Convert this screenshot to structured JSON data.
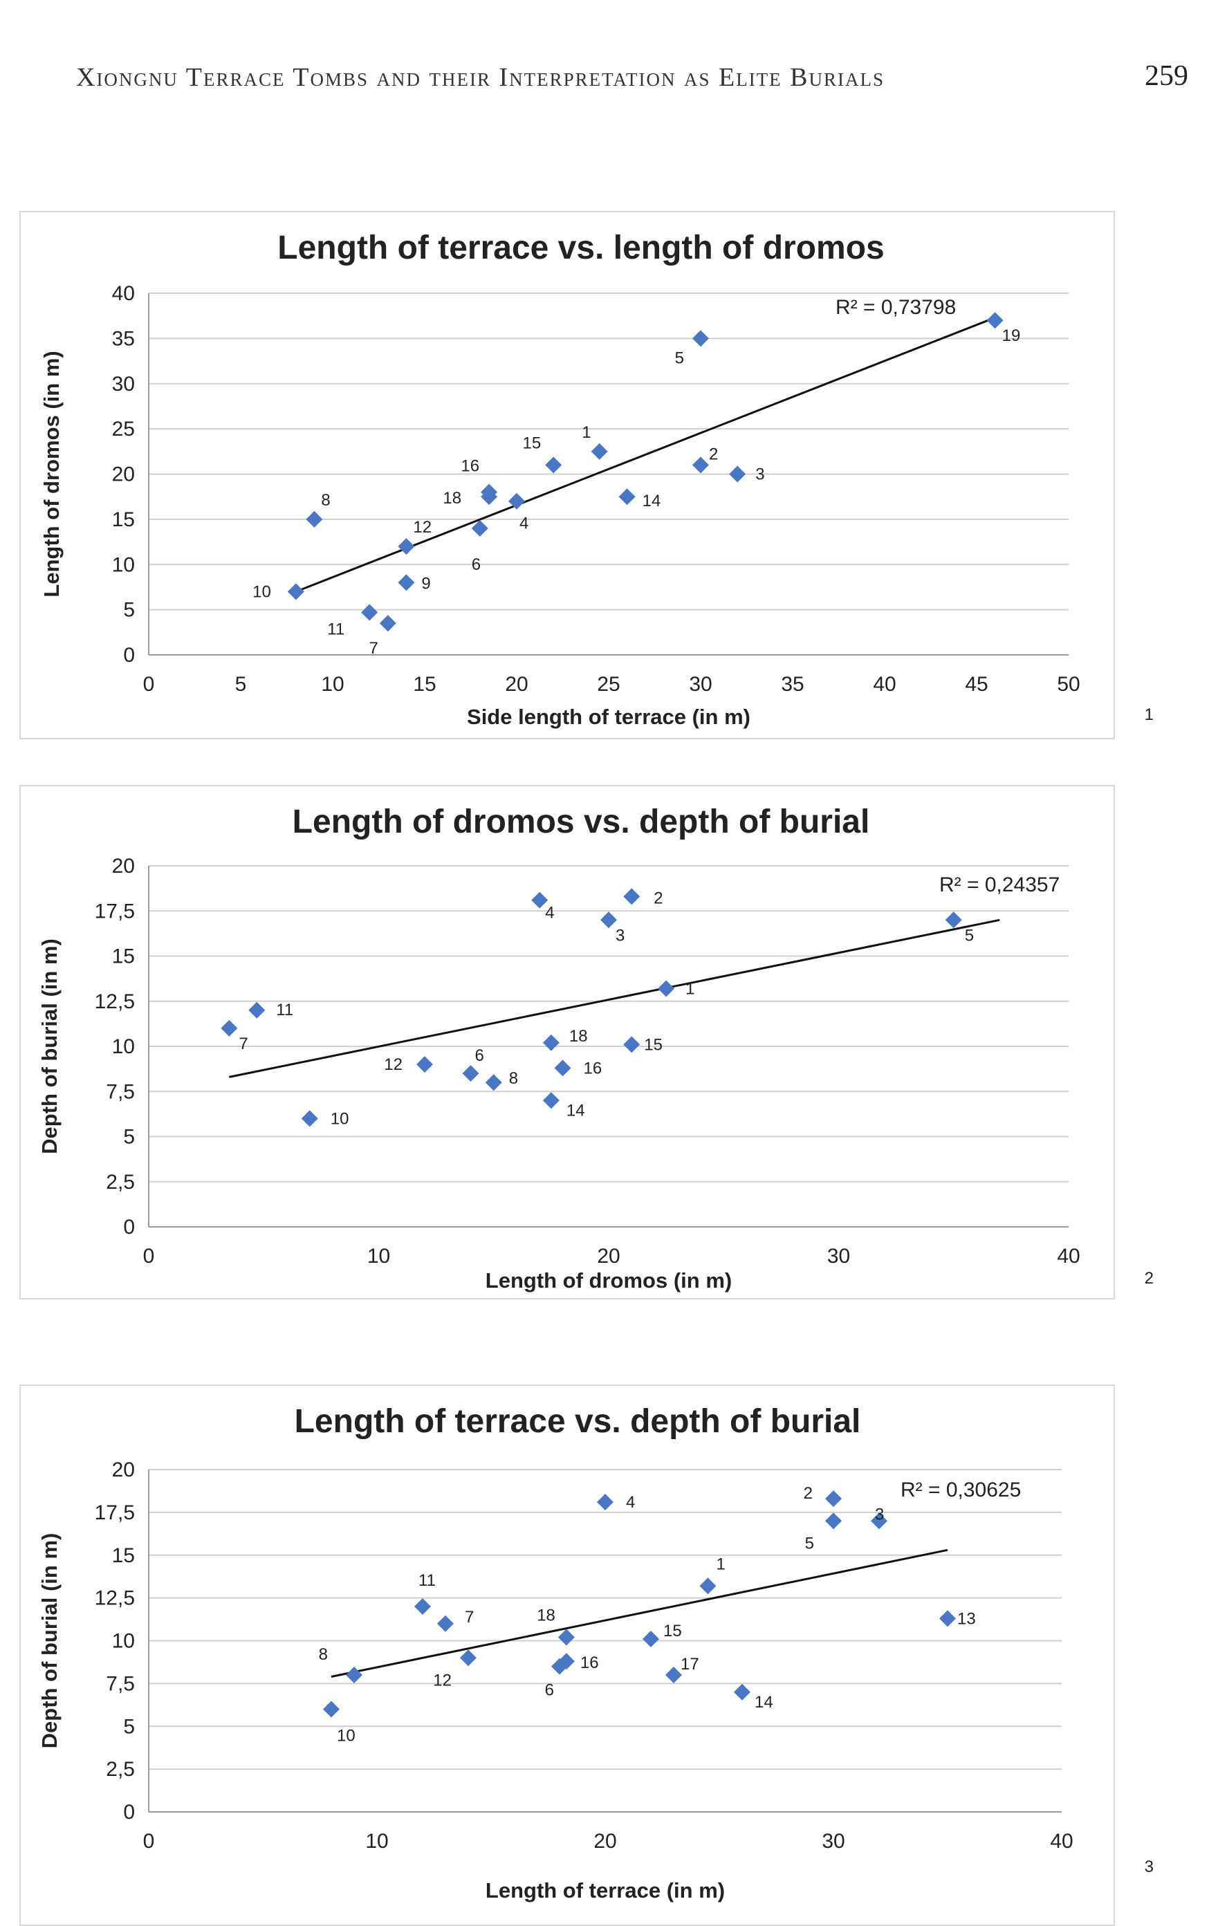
{
  "page": {
    "running_head": "Xiongnu Terrace Tombs and their Interpretation as Elite Burials",
    "page_number": "259"
  },
  "chart_data": [
    {
      "type": "scatter",
      "figure_number": "1",
      "title": "Length of terrace vs. length of dromos",
      "xlabel": "Side length of terrace (in m)",
      "ylabel": "Length of dromos (in m)",
      "xlim": [
        0,
        50
      ],
      "ylim": [
        0,
        40
      ],
      "x_ticks": [
        "0",
        "5",
        "10",
        "15",
        "20",
        "25",
        "30",
        "35",
        "40",
        "45",
        "50"
      ],
      "y_ticks": [
        "0",
        "5",
        "10",
        "15",
        "20",
        "25",
        "30",
        "35",
        "40"
      ],
      "r_squared": "R² = 0,73798",
      "trendline": {
        "x": [
          8,
          46
        ],
        "y": [
          7,
          37.3
        ]
      },
      "points": [
        {
          "label": "1",
          "x": 24.5,
          "y": 22.5
        },
        {
          "label": "2",
          "x": 30,
          "y": 21
        },
        {
          "label": "3",
          "x": 32,
          "y": 20
        },
        {
          "label": "4",
          "x": 20,
          "y": 17
        },
        {
          "label": "5",
          "x": 30,
          "y": 35
        },
        {
          "label": "6",
          "x": 18,
          "y": 14
        },
        {
          "label": "7",
          "x": 13,
          "y": 3.5
        },
        {
          "label": "8",
          "x": 9,
          "y": 15
        },
        {
          "label": "9",
          "x": 14,
          "y": 8
        },
        {
          "label": "10",
          "x": 8,
          "y": 7
        },
        {
          "label": "11",
          "x": 12,
          "y": 4.7
        },
        {
          "label": "12",
          "x": 14,
          "y": 12
        },
        {
          "label": "14",
          "x": 26,
          "y": 17.5
        },
        {
          "label": "15",
          "x": 22,
          "y": 21
        },
        {
          "label": "16",
          "x": 18.5,
          "y": 18
        },
        {
          "label": "18",
          "x": 18.5,
          "y": 17.5
        },
        {
          "label": "19",
          "x": 46,
          "y": 37
        }
      ],
      "grid": true,
      "marker_color": "#4a77c4"
    },
    {
      "type": "scatter",
      "figure_number": "2",
      "title": "Length of dromos vs. depth of burial",
      "xlabel": "Length of dromos (in m)",
      "ylabel": "Depth of burial (in m)",
      "xlim": [
        0,
        40
      ],
      "ylim": [
        0,
        20
      ],
      "x_ticks": [
        "0",
        "10",
        "20",
        "30",
        "40"
      ],
      "y_ticks": [
        "0",
        "2,5",
        "5",
        "7,5",
        "10",
        "12,5",
        "15",
        "17,5",
        "20"
      ],
      "r_squared": "R² = 0,24357",
      "trendline": {
        "x": [
          3.5,
          37
        ],
        "y": [
          8.3,
          17
        ]
      },
      "points": [
        {
          "label": "1",
          "x": 22.5,
          "y": 13.2
        },
        {
          "label": "2",
          "x": 21,
          "y": 18.3
        },
        {
          "label": "3",
          "x": 20,
          "y": 17
        },
        {
          "label": "4",
          "x": 17,
          "y": 18.1
        },
        {
          "label": "5",
          "x": 35,
          "y": 17
        },
        {
          "label": "6",
          "x": 14,
          "y": 8.5
        },
        {
          "label": "7",
          "x": 3.5,
          "y": 11
        },
        {
          "label": "8",
          "x": 15,
          "y": 8
        },
        {
          "label": "10",
          "x": 7,
          "y": 6
        },
        {
          "label": "11",
          "x": 4.7,
          "y": 12
        },
        {
          "label": "12",
          "x": 12,
          "y": 9
        },
        {
          "label": "14",
          "x": 17.5,
          "y": 7
        },
        {
          "label": "15",
          "x": 21,
          "y": 10.1
        },
        {
          "label": "16",
          "x": 18,
          "y": 8.8
        },
        {
          "label": "18",
          "x": 17.5,
          "y": 10.2
        }
      ],
      "grid": true,
      "marker_color": "#4a77c4"
    },
    {
      "type": "scatter",
      "figure_number": "3",
      "title": "Length of terrace  vs. depth of burial",
      "xlabel": "Length of terrace (in m)",
      "ylabel": "Depth of burial (in m)",
      "xlim": [
        0,
        40
      ],
      "ylim": [
        0,
        20
      ],
      "x_ticks": [
        "0",
        "10",
        "20",
        "30",
        "40"
      ],
      "y_ticks": [
        "0",
        "2,5",
        "5",
        "7,5",
        "10",
        "12,5",
        "15",
        "17,5",
        "20"
      ],
      "r_squared": "R² = 0,30625",
      "trendline": {
        "x": [
          8,
          35
        ],
        "y": [
          7.9,
          15.3
        ]
      },
      "points": [
        {
          "label": "1",
          "x": 24.5,
          "y": 13.2
        },
        {
          "label": "2",
          "x": 30,
          "y": 18.3
        },
        {
          "label": "3",
          "x": 32,
          "y": 17
        },
        {
          "label": "4",
          "x": 20,
          "y": 18.1
        },
        {
          "label": "5",
          "x": 30,
          "y": 17
        },
        {
          "label": "6",
          "x": 18,
          "y": 8.5
        },
        {
          "label": "7",
          "x": 13,
          "y": 11
        },
        {
          "label": "8",
          "x": 9,
          "y": 8
        },
        {
          "label": "10",
          "x": 8,
          "y": 6
        },
        {
          "label": "11",
          "x": 12,
          "y": 12
        },
        {
          "label": "12",
          "x": 14,
          "y": 9
        },
        {
          "label": "13",
          "x": 35,
          "y": 11.3
        },
        {
          "label": "14",
          "x": 26,
          "y": 7
        },
        {
          "label": "15",
          "x": 22,
          "y": 10.1
        },
        {
          "label": "16",
          "x": 18.3,
          "y": 8.8
        },
        {
          "label": "17",
          "x": 23,
          "y": 8
        },
        {
          "label": "18",
          "x": 18.3,
          "y": 10.2
        }
      ],
      "grid": true,
      "marker_color": "#4a77c4"
    }
  ]
}
